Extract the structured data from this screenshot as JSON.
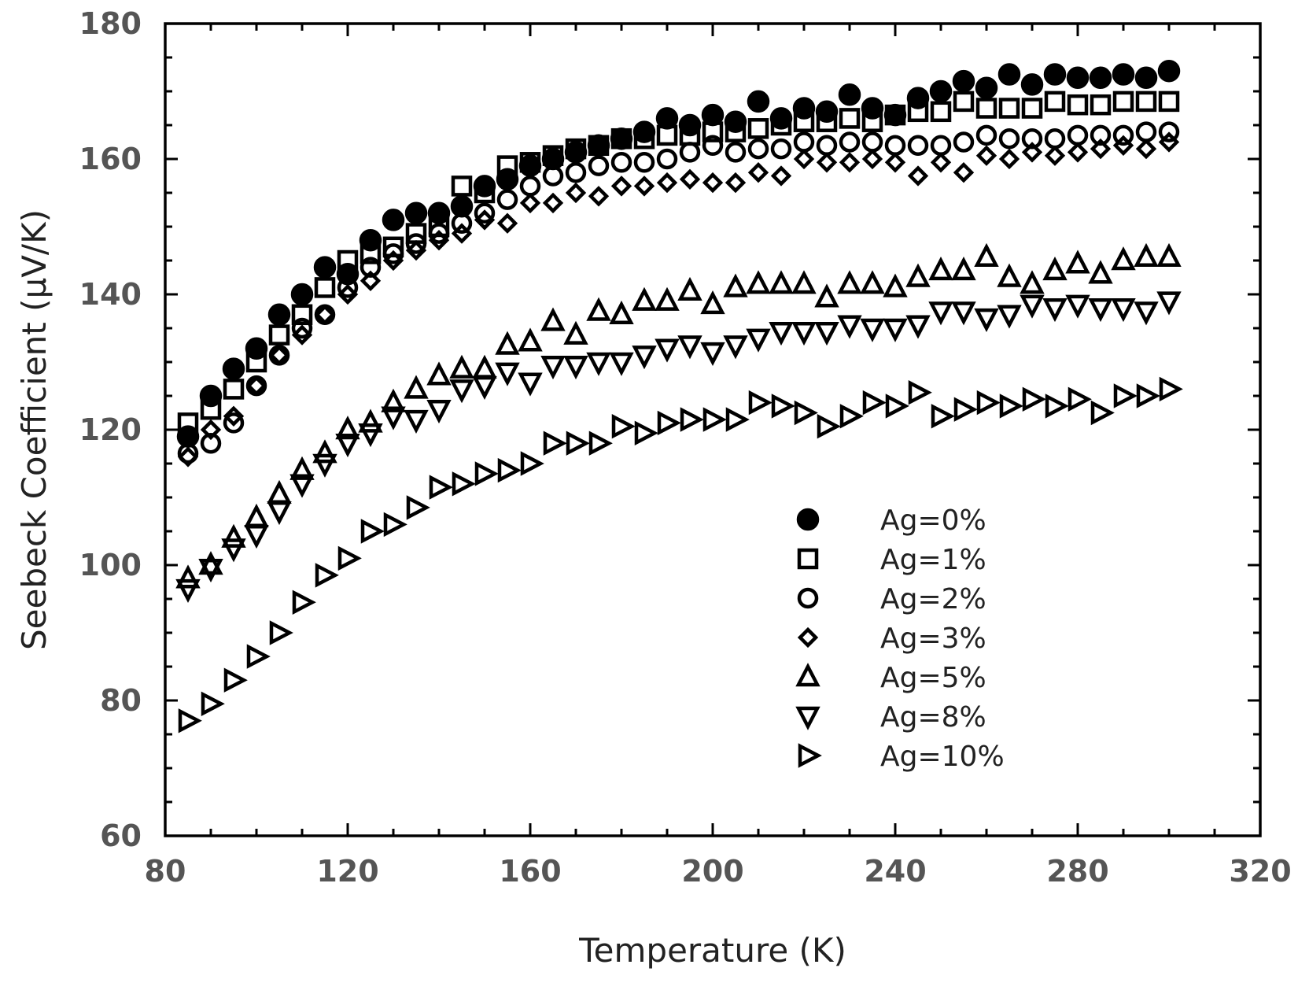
{
  "chart_data": {
    "type": "scatter",
    "title": "",
    "xlabel": "Temperature (K)",
    "ylabel": "Seebeck Coefficient (μV/K)",
    "xlim": [
      80,
      320
    ],
    "ylim": [
      60,
      180
    ],
    "xticks": [
      "80",
      "120",
      "160",
      "200",
      "240",
      "280",
      "320"
    ],
    "yticks": [
      "60",
      "80",
      "100",
      "120",
      "140",
      "160",
      "180"
    ],
    "grid": false,
    "legend_position": "lower-right",
    "series": [
      {
        "name": "Ag=0%",
        "marker": "filled-circle",
        "x": [
          85,
          90,
          95,
          100,
          105,
          110,
          115,
          120,
          125,
          130,
          135,
          140,
          145,
          150,
          155,
          160,
          165,
          170,
          175,
          180,
          185,
          190,
          195,
          200,
          205,
          210,
          215,
          220,
          225,
          230,
          235,
          240,
          245,
          250,
          255,
          260,
          265,
          270,
          275,
          280,
          285,
          290,
          295,
          300
        ],
        "y": [
          119,
          125,
          129,
          132,
          137,
          140,
          144,
          143,
          148,
          151,
          152,
          152,
          153,
          156,
          157,
          159,
          160,
          161,
          162,
          163,
          164,
          166,
          165,
          166.5,
          165.5,
          168.5,
          166,
          167.5,
          167,
          169.5,
          167.5,
          166.5,
          169,
          170,
          171.5,
          170.5,
          172.5,
          171,
          172.5,
          172,
          172,
          172.5,
          172,
          173
        ]
      },
      {
        "name": "Ag=1%",
        "marker": "open-square",
        "x": [
          85,
          90,
          95,
          100,
          105,
          110,
          115,
          120,
          125,
          130,
          135,
          140,
          145,
          150,
          155,
          160,
          165,
          170,
          175,
          180,
          185,
          190,
          195,
          200,
          205,
          210,
          215,
          220,
          225,
          230,
          235,
          240,
          245,
          250,
          255,
          260,
          265,
          270,
          275,
          280,
          285,
          290,
          295,
          300
        ],
        "y": [
          121,
          123,
          126,
          130,
          134,
          137,
          141,
          145,
          146,
          147,
          149,
          150,
          156,
          155,
          159,
          159.5,
          160.5,
          161.5,
          162,
          163,
          163,
          163.5,
          163.5,
          164,
          164,
          164.5,
          165,
          165.5,
          165.5,
          166,
          165.5,
          166.5,
          167,
          167,
          168.5,
          167.5,
          167.5,
          167.5,
          168.5,
          168,
          168,
          168.5,
          168.5,
          168.5
        ]
      },
      {
        "name": "Ag=2%",
        "marker": "open-circle",
        "x": [
          85,
          90,
          95,
          100,
          105,
          110,
          115,
          120,
          125,
          130,
          135,
          140,
          145,
          150,
          155,
          160,
          165,
          170,
          175,
          180,
          185,
          190,
          195,
          200,
          205,
          210,
          215,
          220,
          225,
          230,
          235,
          240,
          245,
          250,
          255,
          260,
          265,
          270,
          275,
          280,
          285,
          290,
          295,
          300
        ],
        "y": [
          116.5,
          118,
          121,
          126.5,
          131,
          135,
          137,
          141,
          144,
          146,
          147.5,
          149,
          150.5,
          152,
          154,
          156,
          157.5,
          158,
          159,
          159.5,
          159.5,
          160,
          161,
          162,
          161,
          161.5,
          161.5,
          162.5,
          162,
          162.5,
          162.5,
          162,
          162,
          162,
          162.5,
          163.5,
          163,
          163,
          163,
          163.5,
          163.5,
          163.5,
          164,
          164
        ]
      },
      {
        "name": "Ag=3%",
        "marker": "open-diamond",
        "x": [
          85,
          90,
          95,
          100,
          105,
          110,
          115,
          120,
          125,
          130,
          135,
          140,
          145,
          150,
          155,
          160,
          165,
          170,
          175,
          180,
          185,
          190,
          195,
          200,
          205,
          210,
          215,
          220,
          225,
          230,
          235,
          240,
          245,
          250,
          255,
          260,
          265,
          270,
          275,
          280,
          285,
          290,
          295,
          300
        ],
        "y": [
          116,
          120,
          122,
          126.5,
          131,
          134,
          137,
          140,
          142,
          145,
          146.5,
          148,
          149,
          151,
          150.5,
          153.5,
          153.5,
          155,
          154.5,
          156,
          156,
          156.5,
          157,
          156.5,
          156.5,
          158,
          157.5,
          160,
          159.5,
          159.5,
          160,
          159.5,
          157.5,
          159.5,
          158,
          160.5,
          160,
          161,
          160.5,
          161,
          161.5,
          162,
          161.5,
          162.5
        ]
      },
      {
        "name": "Ag=5%",
        "marker": "open-triangle-up",
        "x": [
          85,
          90,
          95,
          100,
          105,
          110,
          115,
          120,
          125,
          130,
          135,
          140,
          145,
          150,
          155,
          160,
          165,
          170,
          175,
          180,
          185,
          190,
          195,
          200,
          205,
          210,
          215,
          220,
          225,
          230,
          235,
          240,
          245,
          250,
          255,
          260,
          265,
          270,
          275,
          280,
          285,
          290,
          295,
          300
        ],
        "y": [
          98,
          100,
          104,
          107,
          110.5,
          114,
          116.5,
          120,
          121,
          124,
          126,
          128,
          129,
          129,
          132.5,
          133,
          136,
          134,
          137.5,
          137,
          139,
          139,
          140.5,
          138.5,
          141,
          141.5,
          141.5,
          141.5,
          139.5,
          141.5,
          141.5,
          141,
          142.5,
          143.5,
          143.5,
          145.5,
          142.5,
          141.5,
          143.5,
          144.5,
          143,
          145,
          145.5,
          145.5
        ]
      },
      {
        "name": "Ag=8%",
        "marker": "open-triangle-down",
        "x": [
          85,
          90,
          95,
          100,
          105,
          110,
          115,
          120,
          125,
          130,
          135,
          140,
          145,
          150,
          155,
          160,
          165,
          170,
          175,
          180,
          185,
          190,
          195,
          200,
          205,
          210,
          215,
          220,
          225,
          230,
          235,
          240,
          245,
          250,
          255,
          260,
          265,
          270,
          275,
          280,
          285,
          290,
          295,
          300
        ],
        "y": [
          96.5,
          99.5,
          102.5,
          104.5,
          108,
          112,
          115,
          118,
          119.5,
          122,
          121.5,
          123,
          126,
          126.5,
          128.5,
          127,
          129.5,
          129.5,
          130,
          130,
          131,
          132,
          132.5,
          131.5,
          132.5,
          133.5,
          134.5,
          134.5,
          134.5,
          135.5,
          135,
          135,
          135.5,
          137.5,
          137.5,
          136.5,
          137,
          138.5,
          138,
          138.5,
          138,
          138,
          137.5,
          139
        ]
      },
      {
        "name": "Ag=10%",
        "marker": "open-triangle-right",
        "x": [
          85,
          90,
          95,
          100,
          105,
          110,
          115,
          120,
          125,
          130,
          135,
          140,
          145,
          150,
          155,
          160,
          165,
          170,
          175,
          180,
          185,
          190,
          195,
          200,
          205,
          210,
          215,
          220,
          225,
          230,
          235,
          240,
          245,
          250,
          255,
          260,
          265,
          270,
          275,
          280,
          285,
          290,
          295,
          300
        ],
        "y": [
          77,
          79.5,
          83,
          86.5,
          90,
          94.5,
          98.5,
          101,
          105,
          106,
          108.5,
          111.5,
          112,
          113.5,
          114,
          115,
          118,
          118,
          118,
          120.5,
          119.5,
          121,
          121.5,
          121.5,
          121.5,
          124,
          123.5,
          122.5,
          120.5,
          122,
          124,
          123.5,
          125.5,
          122,
          123,
          124,
          123.5,
          124.5,
          123.5,
          124.5,
          122.5,
          125,
          125,
          126
        ]
      }
    ]
  }
}
